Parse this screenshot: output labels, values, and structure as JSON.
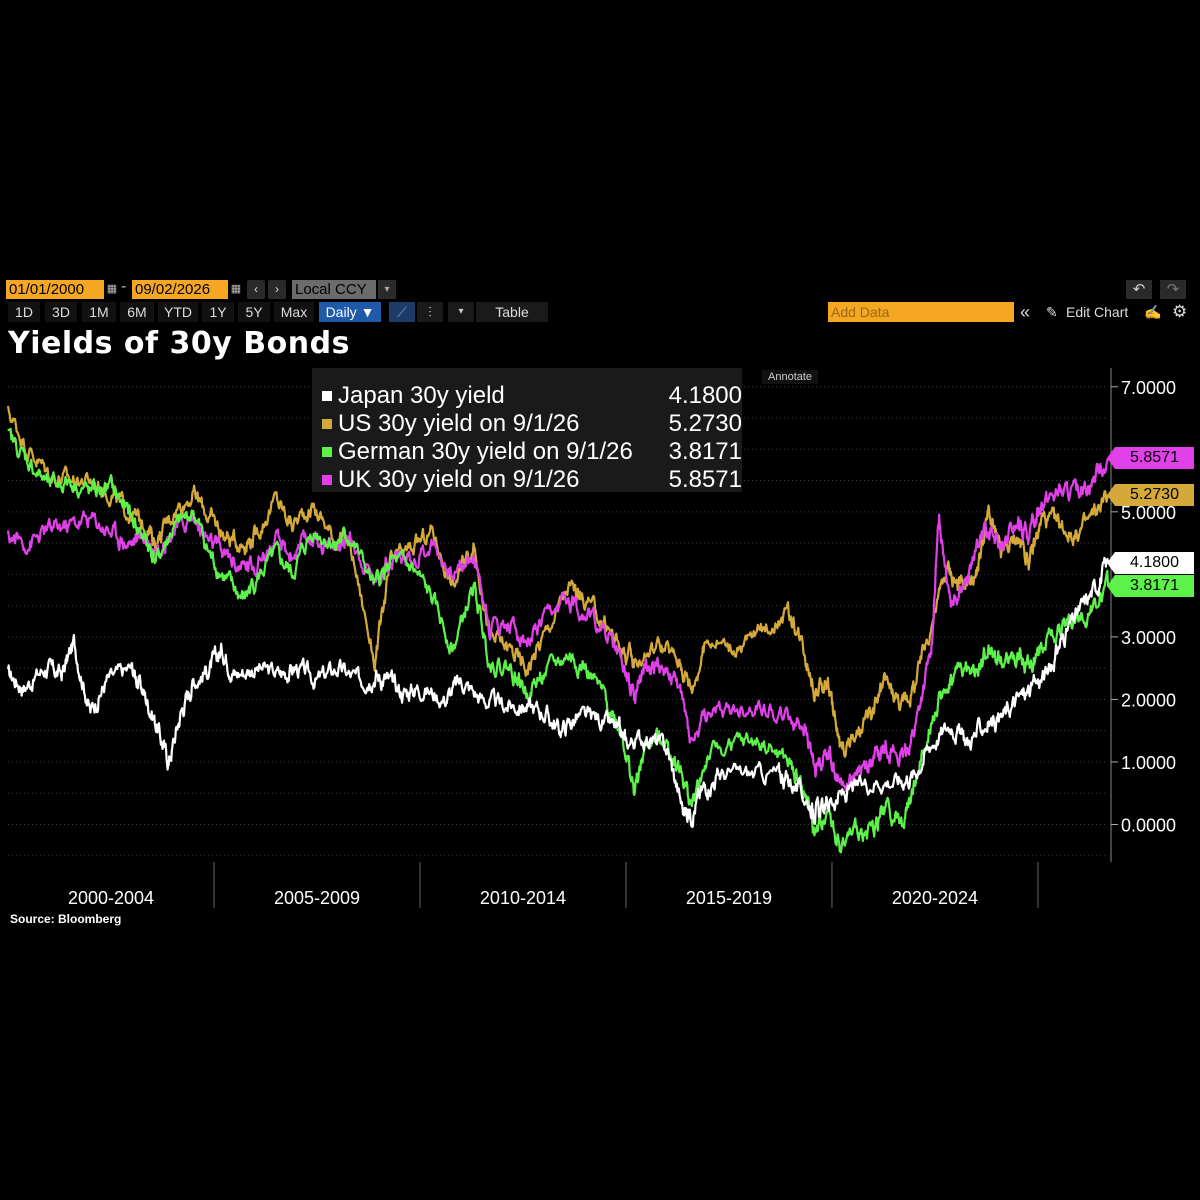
{
  "toolbar": {
    "start_date": "01/01/2000",
    "end_date": "09/02/2026",
    "currency": "Local CCY",
    "ranges": [
      "1D",
      "3D",
      "1M",
      "6M",
      "YTD",
      "1Y",
      "5Y",
      "Max"
    ],
    "frequency": "Daily ▼",
    "table_label": "Table",
    "add_data_placeholder": "Add Data",
    "edit_chart_label": "Edit Chart",
    "annotate_label": "Annotate"
  },
  "source": "Source: Bloomberg",
  "colors": {
    "japan": "#ffffff",
    "us": "#d4a93a",
    "german": "#5cf24a",
    "uk": "#e040e8",
    "orange_field": "#f5a623"
  },
  "chart_data": {
    "type": "line",
    "title": "Yields of 30y Bonds",
    "xlabel": "",
    "ylabel": "",
    "x_period_labels": [
      "2000-2004",
      "2005-2009",
      "2010-2014",
      "2015-2019",
      "2020-2024"
    ],
    "yticks": [
      "0.0000",
      "1.0000",
      "2.0000",
      "3.0000",
      "5.0000",
      "7.0000"
    ],
    "ylim": [
      -0.6,
      7.3
    ],
    "xlim": [
      2000.0,
      2026.7
    ],
    "legend": {
      "placement": "top-center"
    },
    "series": [
      {
        "name": "Japan 30y yield",
        "last": "4.1800",
        "points": [
          [
            2000.0,
            2.4
          ],
          [
            2000.4,
            2.2
          ],
          [
            2000.9,
            2.5
          ],
          [
            2001.3,
            2.4
          ],
          [
            2001.6,
            2.9
          ],
          [
            2002.0,
            1.8
          ],
          [
            2002.4,
            2.3
          ],
          [
            2003.0,
            2.5
          ],
          [
            2003.3,
            2.1
          ],
          [
            2003.6,
            1.6
          ],
          [
            2003.9,
            1.0
          ],
          [
            2004.2,
            1.8
          ],
          [
            2004.5,
            2.3
          ],
          [
            2004.9,
            2.5
          ],
          [
            2005.2,
            2.8
          ],
          [
            2005.5,
            2.4
          ],
          [
            2006.0,
            2.5
          ],
          [
            2006.6,
            2.4
          ],
          [
            2007.0,
            2.5
          ],
          [
            2007.5,
            2.3
          ],
          [
            2008.0,
            2.5
          ],
          [
            2008.5,
            2.3
          ],
          [
            2008.9,
            2.4
          ],
          [
            2009.2,
            2.3
          ],
          [
            2009.6,
            2.1
          ],
          [
            2010.0,
            2.2
          ],
          [
            2010.6,
            2.0
          ],
          [
            2011.0,
            2.3
          ],
          [
            2011.5,
            2.0
          ],
          [
            2012.0,
            1.9
          ],
          [
            2012.5,
            1.9
          ],
          [
            2013.0,
            1.8
          ],
          [
            2013.4,
            1.5
          ],
          [
            2013.8,
            1.7
          ],
          [
            2014.3,
            1.7
          ],
          [
            2014.8,
            1.5
          ],
          [
            2015.0,
            1.3
          ],
          [
            2015.5,
            1.4
          ],
          [
            2016.0,
            1.2
          ],
          [
            2016.4,
            0.2
          ],
          [
            2016.6,
            0.2
          ],
          [
            2016.9,
            0.6
          ],
          [
            2017.3,
            0.8
          ],
          [
            2018.0,
            0.8
          ],
          [
            2018.7,
            0.8
          ],
          [
            2019.0,
            0.7
          ],
          [
            2019.5,
            0.3
          ],
          [
            2019.7,
            0.2
          ],
          [
            2020.0,
            0.4
          ],
          [
            2020.4,
            0.5
          ],
          [
            2021.0,
            0.7
          ],
          [
            2021.6,
            0.7
          ],
          [
            2022.0,
            0.8
          ],
          [
            2022.4,
            1.3
          ],
          [
            2022.9,
            1.6
          ],
          [
            2023.3,
            1.3
          ],
          [
            2023.7,
            1.6
          ],
          [
            2024.1,
            1.7
          ],
          [
            2024.5,
            2.0
          ],
          [
            2024.9,
            2.2
          ],
          [
            2025.3,
            2.5
          ],
          [
            2025.6,
            3.0
          ],
          [
            2026.0,
            3.4
          ],
          [
            2026.4,
            3.8
          ],
          [
            2026.7,
            4.18
          ]
        ]
      },
      {
        "name": "US 30y yield on 9/1/26",
        "last": "5.2730",
        "points": [
          [
            2000.0,
            6.6
          ],
          [
            2000.5,
            6.0
          ],
          [
            2001.0,
            5.6
          ],
          [
            2001.5,
            5.5
          ],
          [
            2002.0,
            5.5
          ],
          [
            2002.5,
            5.3
          ],
          [
            2002.9,
            5.0
          ],
          [
            2003.3,
            4.8
          ],
          [
            2003.6,
            4.5
          ],
          [
            2004.0,
            5.0
          ],
          [
            2004.5,
            5.3
          ],
          [
            2004.9,
            4.9
          ],
          [
            2005.3,
            4.6
          ],
          [
            2005.7,
            4.5
          ],
          [
            2006.0,
            4.6
          ],
          [
            2006.5,
            5.2
          ],
          [
            2006.9,
            4.8
          ],
          [
            2007.4,
            5.1
          ],
          [
            2007.9,
            4.6
          ],
          [
            2008.3,
            4.5
          ],
          [
            2008.9,
            2.6
          ],
          [
            2009.3,
            4.2
          ],
          [
            2009.8,
            4.4
          ],
          [
            2010.3,
            4.7
          ],
          [
            2010.8,
            3.8
          ],
          [
            2011.3,
            4.5
          ],
          [
            2011.7,
            3.0
          ],
          [
            2012.2,
            2.8
          ],
          [
            2012.6,
            2.5
          ],
          [
            2013.0,
            3.0
          ],
          [
            2013.6,
            3.8
          ],
          [
            2014.0,
            3.6
          ],
          [
            2014.5,
            3.2
          ],
          [
            2014.9,
            2.8
          ],
          [
            2015.2,
            2.6
          ],
          [
            2015.8,
            2.9
          ],
          [
            2016.3,
            2.6
          ],
          [
            2016.6,
            2.2
          ],
          [
            2017.0,
            3.0
          ],
          [
            2017.7,
            2.8
          ],
          [
            2018.3,
            3.1
          ],
          [
            2018.9,
            3.4
          ],
          [
            2019.3,
            2.9
          ],
          [
            2019.6,
            2.1
          ],
          [
            2019.9,
            2.3
          ],
          [
            2020.2,
            1.2
          ],
          [
            2020.6,
            1.4
          ],
          [
            2021.0,
            1.8
          ],
          [
            2021.3,
            2.3
          ],
          [
            2021.7,
            1.9
          ],
          [
            2022.0,
            2.2
          ],
          [
            2022.4,
            3.2
          ],
          [
            2022.8,
            4.1
          ],
          [
            2023.1,
            3.8
          ],
          [
            2023.5,
            4.0
          ],
          [
            2023.8,
            5.0
          ],
          [
            2024.1,
            4.3
          ],
          [
            2024.5,
            4.6
          ],
          [
            2024.8,
            4.2
          ],
          [
            2025.1,
            4.9
          ],
          [
            2025.5,
            4.8
          ],
          [
            2025.9,
            4.6
          ],
          [
            2026.3,
            4.9
          ],
          [
            2026.7,
            5.27
          ]
        ]
      },
      {
        "name": "German 30y yield on 9/1/26",
        "last": "3.8171",
        "points": [
          [
            2000.0,
            6.2
          ],
          [
            2000.5,
            5.8
          ],
          [
            2001.0,
            5.4
          ],
          [
            2001.5,
            5.5
          ],
          [
            2002.0,
            5.3
          ],
          [
            2002.5,
            5.4
          ],
          [
            2002.9,
            5.0
          ],
          [
            2003.3,
            4.6
          ],
          [
            2003.6,
            4.2
          ],
          [
            2004.0,
            4.7
          ],
          [
            2004.5,
            5.0
          ],
          [
            2004.9,
            4.3
          ],
          [
            2005.3,
            3.9
          ],
          [
            2005.7,
            3.6
          ],
          [
            2006.0,
            3.9
          ],
          [
            2006.5,
            4.3
          ],
          [
            2006.9,
            4.0
          ],
          [
            2007.4,
            4.7
          ],
          [
            2007.9,
            4.5
          ],
          [
            2008.3,
            4.6
          ],
          [
            2008.9,
            3.8
          ],
          [
            2009.3,
            4.2
          ],
          [
            2009.8,
            4.1
          ],
          [
            2010.3,
            3.6
          ],
          [
            2010.8,
            2.8
          ],
          [
            2011.3,
            3.8
          ],
          [
            2011.7,
            2.6
          ],
          [
            2012.2,
            2.5
          ],
          [
            2012.6,
            2.1
          ],
          [
            2013.0,
            2.4
          ],
          [
            2013.6,
            2.7
          ],
          [
            2014.0,
            2.5
          ],
          [
            2014.5,
            2.0
          ],
          [
            2014.9,
            1.5
          ],
          [
            2015.2,
            0.5
          ],
          [
            2015.5,
            1.3
          ],
          [
            2015.9,
            1.4
          ],
          [
            2016.3,
            0.9
          ],
          [
            2016.6,
            0.3
          ],
          [
            2017.0,
            1.1
          ],
          [
            2017.7,
            1.3
          ],
          [
            2018.3,
            1.3
          ],
          [
            2018.9,
            1.0
          ],
          [
            2019.3,
            0.6
          ],
          [
            2019.6,
            -0.2
          ],
          [
            2019.9,
            0.3
          ],
          [
            2020.2,
            -0.4
          ],
          [
            2020.6,
            -0.1
          ],
          [
            2021.0,
            -0.1
          ],
          [
            2021.3,
            0.3
          ],
          [
            2021.7,
            0.0
          ],
          [
            2022.0,
            0.6
          ],
          [
            2022.4,
            1.7
          ],
          [
            2022.8,
            2.2
          ],
          [
            2023.1,
            2.5
          ],
          [
            2023.5,
            2.4
          ],
          [
            2023.8,
            2.8
          ],
          [
            2024.1,
            2.6
          ],
          [
            2024.5,
            2.7
          ],
          [
            2024.8,
            2.5
          ],
          [
            2025.1,
            2.9
          ],
          [
            2025.5,
            3.1
          ],
          [
            2025.9,
            3.3
          ],
          [
            2026.3,
            3.4
          ],
          [
            2026.7,
            3.82
          ]
        ]
      },
      {
        "name": "UK 30y yield on 9/1/26",
        "last": "5.8571",
        "points": [
          [
            2000.0,
            4.6
          ],
          [
            2000.5,
            4.5
          ],
          [
            2001.0,
            4.7
          ],
          [
            2001.5,
            4.8
          ],
          [
            2002.0,
            4.9
          ],
          [
            2002.5,
            4.7
          ],
          [
            2002.9,
            4.5
          ],
          [
            2003.3,
            4.6
          ],
          [
            2003.6,
            4.4
          ],
          [
            2004.0,
            4.7
          ],
          [
            2004.5,
            4.9
          ],
          [
            2004.9,
            4.5
          ],
          [
            2005.3,
            4.3
          ],
          [
            2005.7,
            4.1
          ],
          [
            2006.0,
            4.2
          ],
          [
            2006.5,
            4.5
          ],
          [
            2006.9,
            4.3
          ],
          [
            2007.4,
            4.6
          ],
          [
            2007.9,
            4.4
          ],
          [
            2008.3,
            4.6
          ],
          [
            2008.9,
            3.9
          ],
          [
            2009.3,
            4.3
          ],
          [
            2009.8,
            4.2
          ],
          [
            2010.3,
            4.5
          ],
          [
            2010.8,
            4.0
          ],
          [
            2011.3,
            4.3
          ],
          [
            2011.7,
            3.2
          ],
          [
            2012.2,
            3.2
          ],
          [
            2012.6,
            2.9
          ],
          [
            2013.0,
            3.2
          ],
          [
            2013.6,
            3.6
          ],
          [
            2014.0,
            3.4
          ],
          [
            2014.5,
            3.1
          ],
          [
            2014.9,
            2.6
          ],
          [
            2015.2,
            2.1
          ],
          [
            2015.5,
            2.6
          ],
          [
            2015.9,
            2.5
          ],
          [
            2016.3,
            2.2
          ],
          [
            2016.6,
            1.3
          ],
          [
            2017.0,
            1.8
          ],
          [
            2017.7,
            1.8
          ],
          [
            2018.3,
            1.9
          ],
          [
            2018.9,
            1.7
          ],
          [
            2019.3,
            1.6
          ],
          [
            2019.6,
            0.9
          ],
          [
            2019.9,
            1.2
          ],
          [
            2020.2,
            0.6
          ],
          [
            2020.6,
            0.9
          ],
          [
            2021.0,
            1.0
          ],
          [
            2021.3,
            1.3
          ],
          [
            2021.7,
            1.0
          ],
          [
            2022.0,
            1.5
          ],
          [
            2022.4,
            2.7
          ],
          [
            2022.6,
            4.9
          ],
          [
            2022.9,
            3.6
          ],
          [
            2023.3,
            3.9
          ],
          [
            2023.7,
            4.8
          ],
          [
            2024.1,
            4.4
          ],
          [
            2024.5,
            4.8
          ],
          [
            2024.8,
            4.6
          ],
          [
            2025.1,
            5.2
          ],
          [
            2025.5,
            5.3
          ],
          [
            2025.9,
            5.3
          ],
          [
            2026.3,
            5.5
          ],
          [
            2026.7,
            5.86
          ]
        ]
      }
    ]
  }
}
